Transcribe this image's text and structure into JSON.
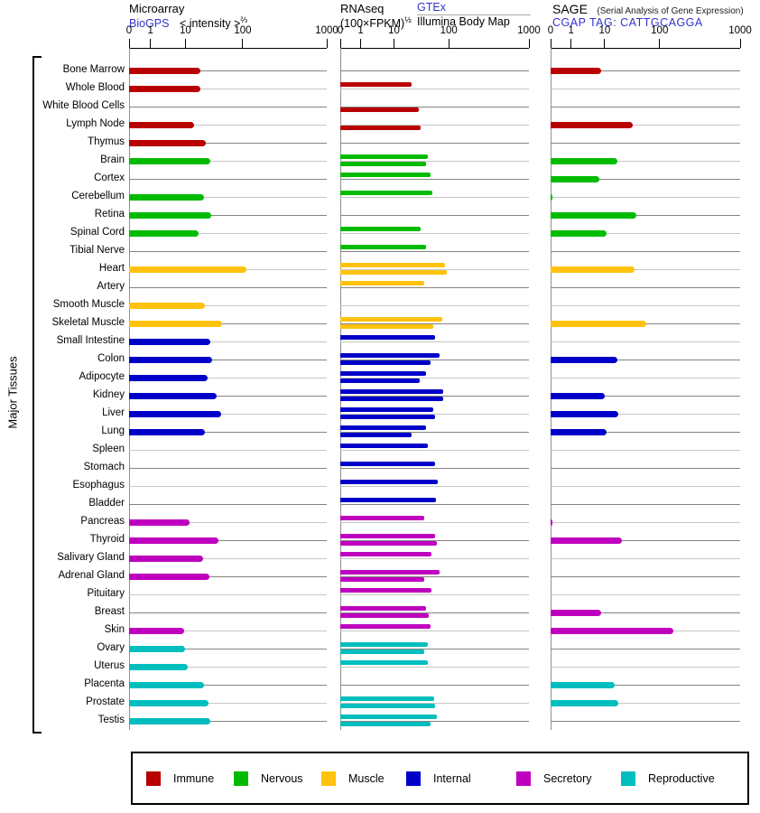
{
  "chart_data": {
    "type": "bar",
    "orientation": "horizontal",
    "x_ticks": [
      0,
      1,
      10,
      100,
      1000
    ],
    "x_tick_labels": [
      "0",
      "1",
      "10",
      "100",
      "1000"
    ],
    "x_scale": "piecewise: linear from 0 to 1, logarithmic from 1 to 1000",
    "y_axis_label": "Major Tissues",
    "panels": [
      {
        "id": "microarray",
        "title": "Microarray",
        "link": "BioGPS",
        "subtitle": "< intensity >",
        "subtitle_sup": "⅔"
      },
      {
        "id": "rnaseq",
        "title": "RNAseq",
        "unit": "(100×FPKM)",
        "unit_sup": "½",
        "link": "GTEx",
        "series2_label": "Illumina Body Map"
      },
      {
        "id": "sage",
        "title": "SAGE",
        "note": "(Serial Analysis of Gene Expression)",
        "tag": "CGAP TAG: CATTGCAGGA"
      }
    ],
    "groups": [
      {
        "id": "immune",
        "label": "Immune",
        "color": "#B80000"
      },
      {
        "id": "nervous",
        "label": "Nervous",
        "color": "#00BB00"
      },
      {
        "id": "muscle",
        "label": "Muscle",
        "color": "#FFC20E"
      },
      {
        "id": "internal",
        "label": "Internal",
        "color": "#0000C8"
      },
      {
        "id": "secretory",
        "label": "Secretory",
        "color": "#BE00BE"
      },
      {
        "id": "reproductive",
        "label": "Reproductive",
        "color": "#00BEBE"
      }
    ],
    "tissues": [
      {
        "name": "Bone Marrow",
        "group": "immune",
        "microarray": 18,
        "rnaseq_gtex": null,
        "rnaseq_illumina": null,
        "sage": 8
      },
      {
        "name": "Whole Blood",
        "group": "immune",
        "microarray": 18,
        "rnaseq_gtex": 21,
        "rnaseq_illumina": null,
        "sage": null
      },
      {
        "name": "White Blood Cells",
        "group": "immune",
        "microarray": null,
        "rnaseq_gtex": null,
        "rnaseq_illumina": 28,
        "sage": null
      },
      {
        "name": "Lymph Node",
        "group": "immune",
        "microarray": 14,
        "rnaseq_gtex": null,
        "rnaseq_illumina": 31,
        "sage": 32
      },
      {
        "name": "Thymus",
        "group": "immune",
        "microarray": 23,
        "rnaseq_gtex": null,
        "rnaseq_illumina": null,
        "sage": null
      },
      {
        "name": "Brain",
        "group": "nervous",
        "microarray": 27,
        "rnaseq_gtex": 42,
        "rnaseq_illumina": 38,
        "sage": 17
      },
      {
        "name": "Cortex",
        "group": "nervous",
        "microarray": null,
        "rnaseq_gtex": 46,
        "rnaseq_illumina": null,
        "sage": 7
      },
      {
        "name": "Cerebellum",
        "group": "nervous",
        "microarray": 21,
        "rnaseq_gtex": 50,
        "rnaseq_illumina": null,
        "sage": 0.1
      },
      {
        "name": "Retina",
        "group": "nervous",
        "microarray": 28,
        "rnaseq_gtex": null,
        "rnaseq_illumina": null,
        "sage": 38
      },
      {
        "name": "Spinal Cord",
        "group": "nervous",
        "microarray": 17,
        "rnaseq_gtex": 31,
        "rnaseq_illumina": null,
        "sage": 11
      },
      {
        "name": "Tibial Nerve",
        "group": "nervous",
        "microarray": null,
        "rnaseq_gtex": 38,
        "rnaseq_illumina": null,
        "sage": null
      },
      {
        "name": "Heart",
        "group": "muscle",
        "microarray": 110,
        "rnaseq_gtex": 86,
        "rnaseq_illumina": 92,
        "sage": 35
      },
      {
        "name": "Artery",
        "group": "muscle",
        "microarray": null,
        "rnaseq_gtex": 35,
        "rnaseq_illumina": null,
        "sage": null
      },
      {
        "name": "Smooth Muscle",
        "group": "muscle",
        "microarray": 22,
        "rnaseq_gtex": null,
        "rnaseq_illumina": null,
        "sage": null
      },
      {
        "name": "Skeletal Muscle",
        "group": "muscle",
        "microarray": 43,
        "rnaseq_gtex": 75,
        "rnaseq_illumina": 52,
        "sage": 57
      },
      {
        "name": "Small Intestine",
        "group": "internal",
        "microarray": 27,
        "rnaseq_gtex": 57,
        "rnaseq_illumina": null,
        "sage": null
      },
      {
        "name": "Colon",
        "group": "internal",
        "microarray": 29,
        "rnaseq_gtex": 67,
        "rnaseq_illumina": 46,
        "sage": 17
      },
      {
        "name": "Adipocyte",
        "group": "internal",
        "microarray": 24,
        "rnaseq_gtex": 38,
        "rnaseq_illumina": 29,
        "sage": null
      },
      {
        "name": "Kidney",
        "group": "internal",
        "microarray": 35,
        "rnaseq_gtex": 79,
        "rnaseq_illumina": 79,
        "sage": 10
      },
      {
        "name": "Liver",
        "group": "internal",
        "microarray": 42,
        "rnaseq_gtex": 53,
        "rnaseq_illumina": 56,
        "sage": 18
      },
      {
        "name": "Lung",
        "group": "internal",
        "microarray": 22,
        "rnaseq_gtex": 38,
        "rnaseq_illumina": 21,
        "sage": 11
      },
      {
        "name": "Spleen",
        "group": "internal",
        "microarray": null,
        "rnaseq_gtex": 41,
        "rnaseq_illumina": null,
        "sage": null
      },
      {
        "name": "Stomach",
        "group": "internal",
        "microarray": null,
        "rnaseq_gtex": 56,
        "rnaseq_illumina": null,
        "sage": null
      },
      {
        "name": "Esophagus",
        "group": "internal",
        "microarray": null,
        "rnaseq_gtex": 62,
        "rnaseq_illumina": null,
        "sage": null
      },
      {
        "name": "Bladder",
        "group": "internal",
        "microarray": null,
        "rnaseq_gtex": 58,
        "rnaseq_illumina": null,
        "sage": null
      },
      {
        "name": "Pancreas",
        "group": "secretory",
        "microarray": 12,
        "rnaseq_gtex": 36,
        "rnaseq_illumina": null,
        "sage": 0.1
      },
      {
        "name": "Thyroid",
        "group": "secretory",
        "microarray": 38,
        "rnaseq_gtex": 56,
        "rnaseq_illumina": 61,
        "sage": 21
      },
      {
        "name": "Salivary Gland",
        "group": "secretory",
        "microarray": 20,
        "rnaseq_gtex": 48,
        "rnaseq_illumina": null,
        "sage": null
      },
      {
        "name": "Adrenal Gland",
        "group": "secretory",
        "microarray": 26,
        "rnaseq_gtex": 68,
        "rnaseq_illumina": 36,
        "sage": null
      },
      {
        "name": "Pituitary",
        "group": "secretory",
        "microarray": null,
        "rnaseq_gtex": 48,
        "rnaseq_illumina": null,
        "sage": null
      },
      {
        "name": "Breast",
        "group": "secretory",
        "microarray": null,
        "rnaseq_gtex": 39,
        "rnaseq_illumina": 43,
        "sage": 8
      },
      {
        "name": "Skin",
        "group": "secretory",
        "microarray": 9,
        "rnaseq_gtex": 46,
        "rnaseq_illumina": null,
        "sage": 150
      },
      {
        "name": "Ovary",
        "group": "reproductive",
        "microarray": 10,
        "rnaseq_gtex": 41,
        "rnaseq_illumina": 36,
        "sage": null
      },
      {
        "name": "Uterus",
        "group": "reproductive",
        "microarray": 11,
        "rnaseq_gtex": 41,
        "rnaseq_illumina": null,
        "sage": null
      },
      {
        "name": "Placenta",
        "group": "reproductive",
        "microarray": 21,
        "rnaseq_gtex": null,
        "rnaseq_illumina": null,
        "sage": 15
      },
      {
        "name": "Prostate",
        "group": "reproductive",
        "microarray": 25,
        "rnaseq_gtex": 54,
        "rnaseq_illumina": 57,
        "sage": 18
      },
      {
        "name": "Testis",
        "group": "reproductive",
        "microarray": 27,
        "rnaseq_gtex": 61,
        "rnaseq_illumina": 46,
        "sage": null
      }
    ]
  }
}
